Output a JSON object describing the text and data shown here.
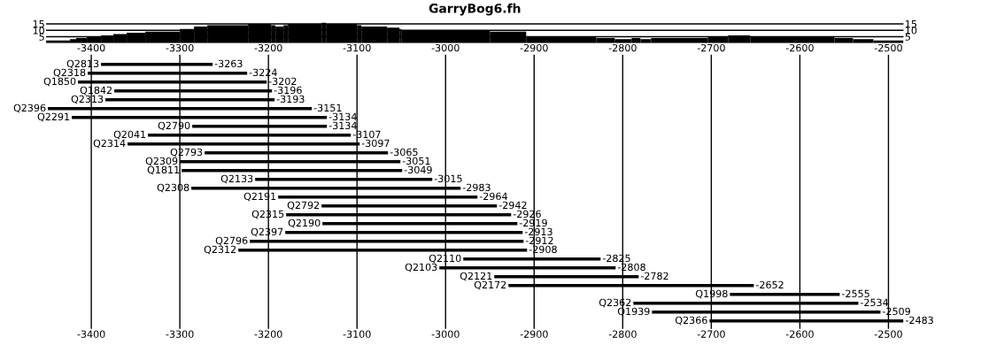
{
  "chart_data": [
    {
      "type": "histogram",
      "title": "GarryBog6.fh",
      "bins": [
        -3451,
        -3424,
        -3417,
        -3405,
        -3389,
        -3375,
        -3360,
        -3339,
        -3300,
        -3284,
        -3269,
        -3223,
        -3197,
        -3192,
        -3183,
        -3178,
        -3140,
        -3135,
        -3100,
        -3095,
        -3066,
        -3052,
        -3050,
        -2950,
        -2909,
        -2830,
        -2809,
        -2790,
        -2780,
        -2768,
        -2704,
        -2681,
        -2656,
        -2561,
        -2540,
        -2517,
        -2483
      ],
      "values": [
        2,
        3,
        4,
        5,
        6,
        7,
        8,
        9,
        11,
        13,
        14,
        15,
        14,
        13,
        14,
        15,
        16,
        15,
        14,
        13,
        12,
        11,
        10,
        9,
        5,
        4,
        3,
        4,
        3,
        4,
        5,
        6,
        5,
        4,
        3,
        2
      ],
      "color": "#000000",
      "xlim": [
        -3451,
        -2483
      ],
      "ylim": [
        0,
        16
      ],
      "yticks": [
        5,
        10,
        15
      ],
      "y2lim": [
        0,
        16
      ],
      "y2ticks": [
        5,
        10,
        15
      ],
      "grid": "y",
      "tick_labels": "y"
    },
    {
      "type": "bar",
      "orientation": "horizontal",
      "color": "#000000",
      "categories": [
        "Q2813",
        "Q2318",
        "Q1850",
        "Q1842",
        "Q2313",
        "Q2396",
        "Q2291",
        "Q2790",
        "Q2041",
        "Q2314",
        "Q2793",
        "Q2309",
        "Q1811",
        "Q2133",
        "Q2308",
        "Q2191",
        "Q2792",
        "Q2315",
        "Q2190",
        "Q2397",
        "Q2796",
        "Q2312",
        "Q2110",
        "Q2103",
        "Q2121",
        "Q2172",
        "Q1998",
        "Q2362",
        "Q1939",
        "Q2366"
      ],
      "base": [
        -3389,
        -3404,
        -3415,
        -3374,
        -3384,
        -3449,
        -3422,
        -3286,
        -3336,
        -3359,
        -3272,
        -3300,
        -3298,
        -3215,
        -3287,
        -3189,
        -3140,
        -3180,
        -3139,
        -3181,
        -3221,
        -3234,
        -2980,
        -3007,
        -2945,
        -2929,
        -2679,
        -2788,
        -2767,
        -2702
      ],
      "values": [
        126,
        180,
        213,
        178,
        191,
        298,
        288,
        152,
        229,
        262,
        207,
        249,
        249,
        200,
        304,
        225,
        198,
        254,
        220,
        268,
        309,
        326,
        155,
        199,
        163,
        277,
        124,
        254,
        258,
        219
      ],
      "value_labels": [
        "-3263",
        "-3224",
        "-3202",
        "-3196",
        "-3193",
        "-3151",
        "-3134",
        "-3134",
        "-3107",
        "-3097",
        "-3065",
        "-3051",
        "-3049",
        "-3015",
        "-2983",
        "-2964",
        "-2942",
        "-2926",
        "-2919",
        "-2913",
        "-2912",
        "-2908",
        "-2825",
        "-2808",
        "-2782",
        "-2652",
        "-2555",
        "-2534",
        "-2509",
        "-2483"
      ],
      "xlim": [
        -3451,
        -2483
      ],
      "xticks": [
        -3400,
        -3300,
        -3200,
        -3100,
        -3000,
        -2900,
        -2800,
        -2700,
        -2600,
        -2500
      ],
      "x2lim": [
        -3451,
        -2483
      ],
      "x2ticks": [
        -3400,
        -3300,
        -3200,
        -3100,
        -3000,
        -2900,
        -2800,
        -2700,
        -2600,
        -2500
      ],
      "grid": "x",
      "tick_labels": "x"
    }
  ]
}
